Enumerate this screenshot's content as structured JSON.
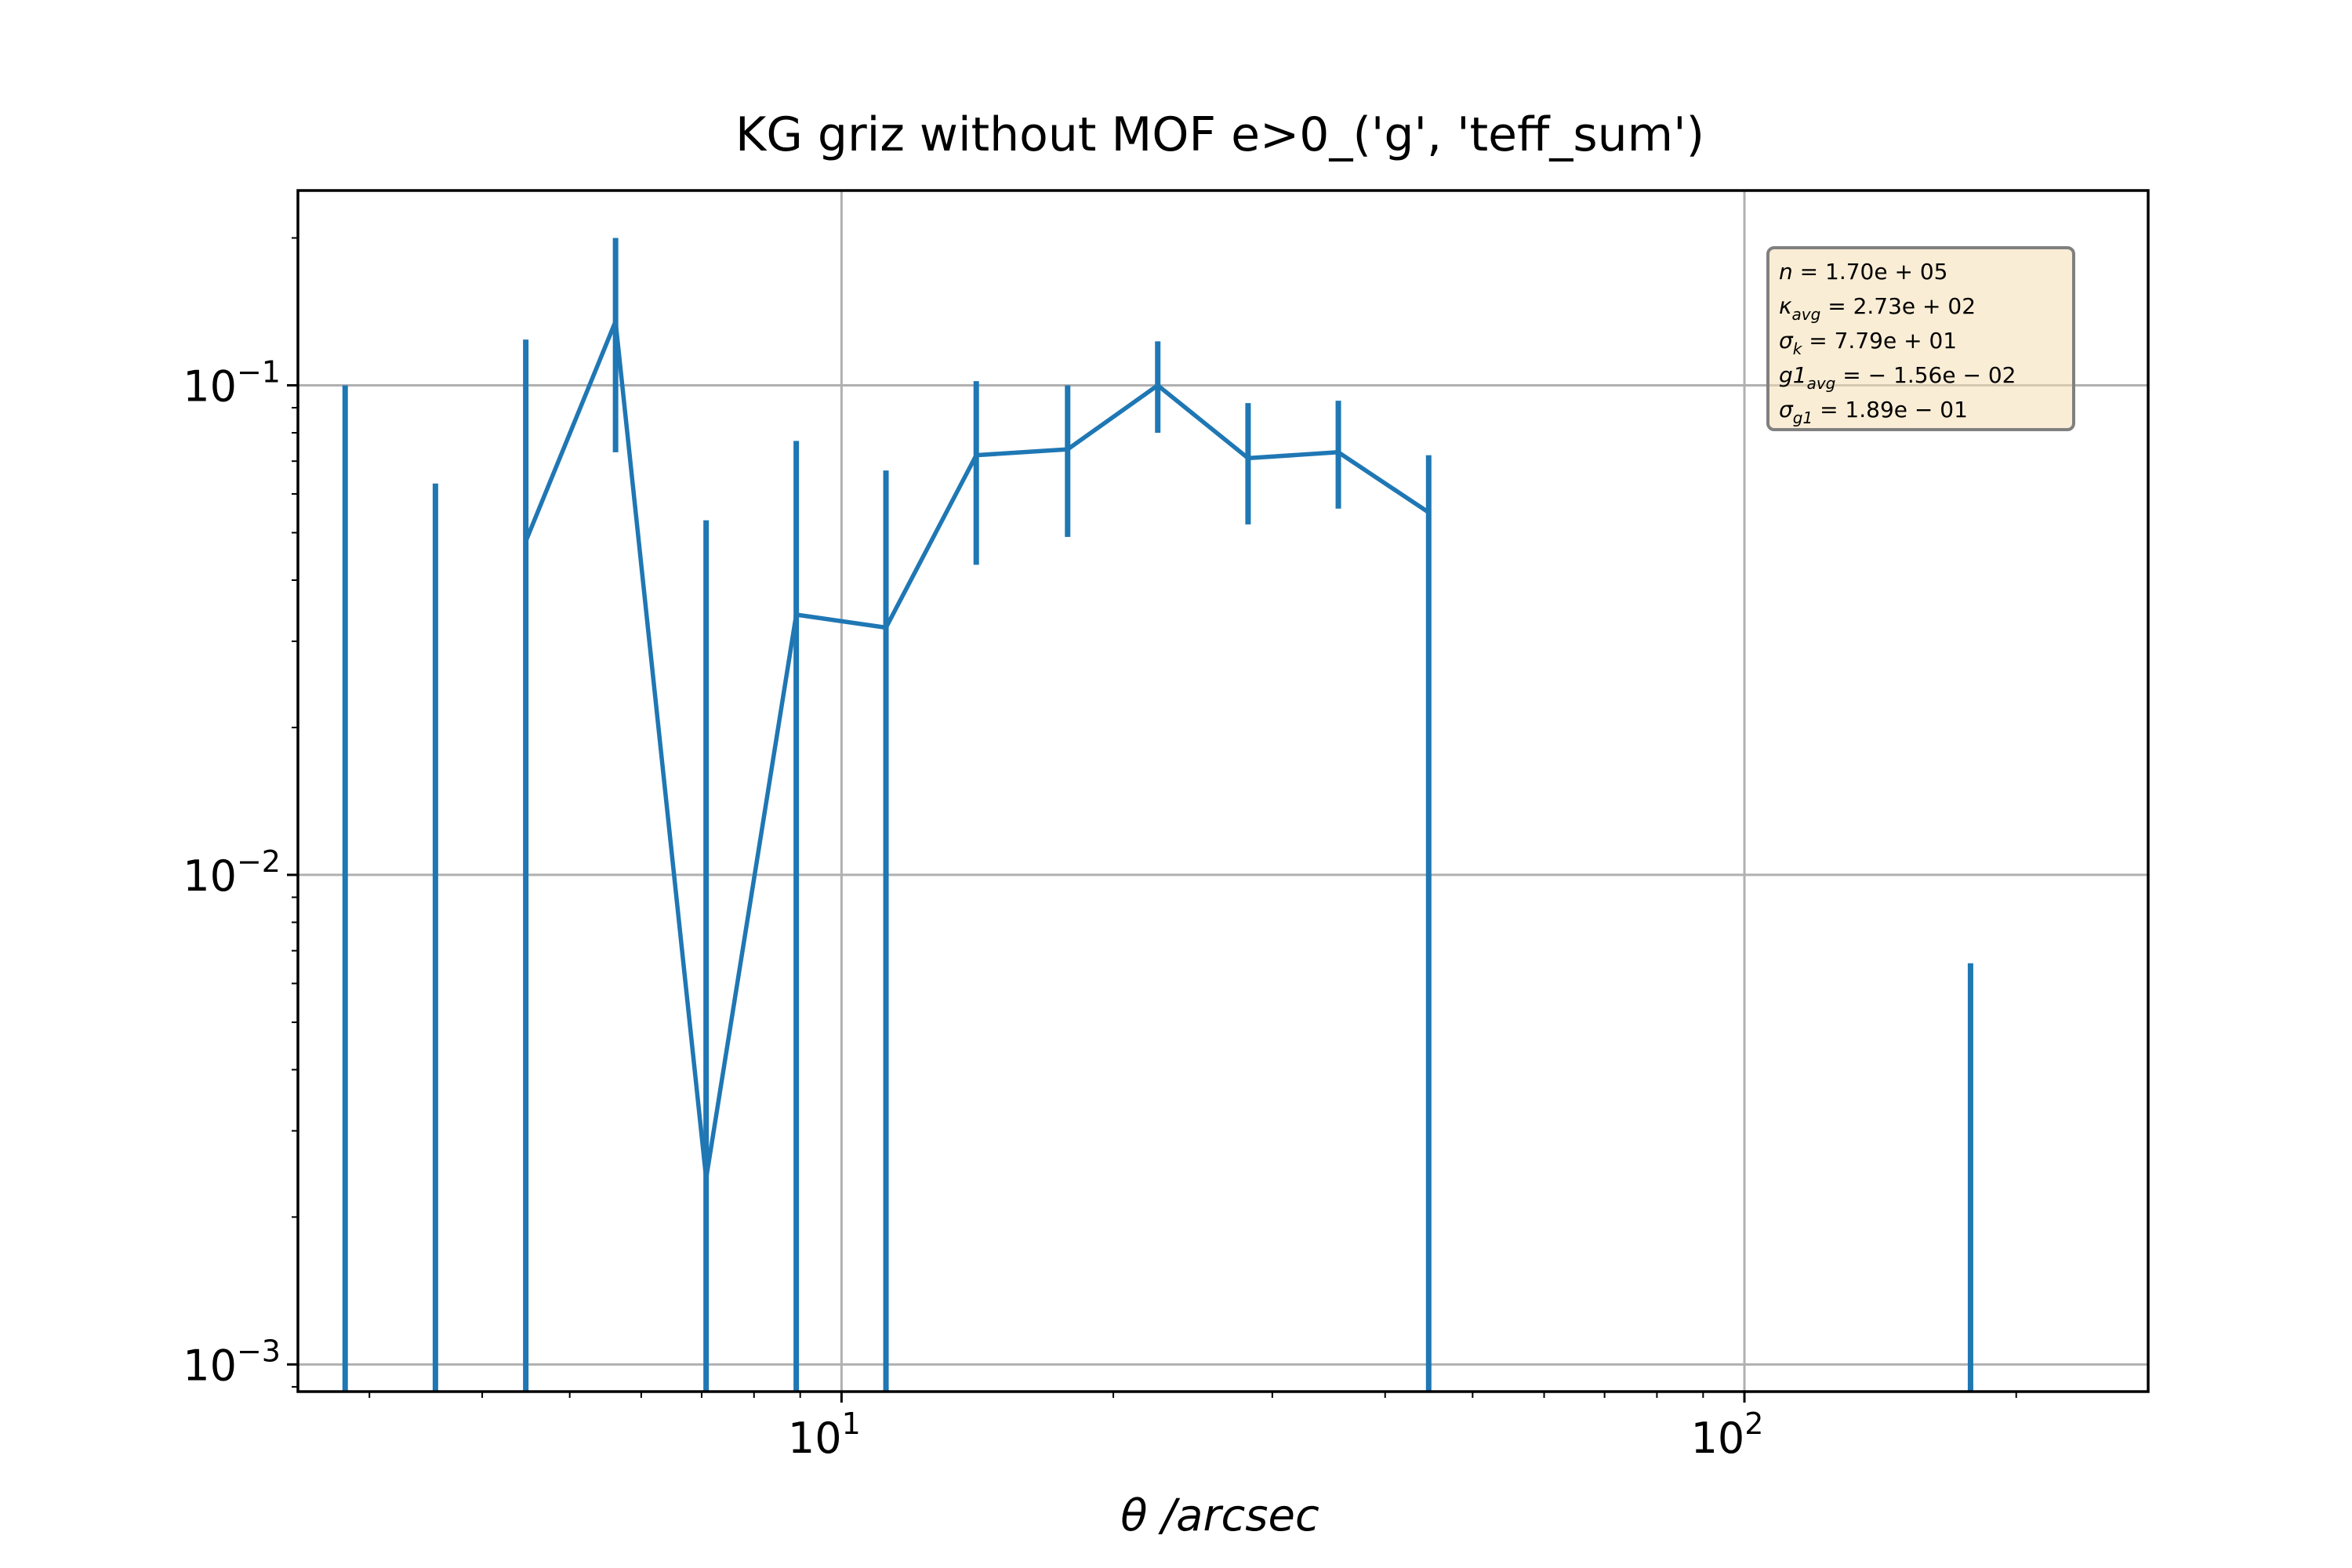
{
  "colors": {
    "series": "#1f77b4",
    "grid": "#b0b0b0",
    "stats_box_fill": "#f5deb3",
    "stats_box_edge": "#808080"
  },
  "chart_data": {
    "type": "line",
    "title": "KG griz without MOF e>0_('g', 'teff_sum')",
    "xlabel": "θ /arcsec",
    "ylabel": "",
    "xscale": "log",
    "yscale": "log",
    "xlim": [
      2.5,
      280
    ],
    "ylim": [
      0.00088,
      0.25
    ],
    "grid": true,
    "x_ticks": [
      {
        "value": 10,
        "base": "10",
        "exp": "1"
      },
      {
        "value": 100,
        "base": "10",
        "exp": "2"
      }
    ],
    "y_ticks": [
      {
        "value": 0.001,
        "base": "10",
        "exp": "−3"
      },
      {
        "value": 0.01,
        "base": "10",
        "exp": "−2"
      },
      {
        "value": 0.1,
        "base": "10",
        "exp": "−1"
      }
    ],
    "series": [
      {
        "x": [
          2.82,
          3.55,
          4.47,
          5.62,
          7.08,
          8.91,
          11.2,
          14.1,
          17.8,
          22.4,
          28.2,
          35.5,
          44.7,
          178
        ],
        "y": [
          null,
          null,
          0.048,
          0.135,
          0.0024,
          0.034,
          0.032,
          0.072,
          0.074,
          0.1,
          0.071,
          0.073,
          0.055,
          null
        ],
        "err_upper": [
          0.1,
          0.063,
          0.124,
          0.2,
          0.053,
          0.077,
          0.067,
          0.102,
          0.1,
          0.123,
          0.092,
          0.093,
          0.072,
          0.0066
        ],
        "err_lower": [
          0.00088,
          0.00088,
          0.00088,
          0.073,
          0.00088,
          0.00088,
          0.00088,
          0.043,
          0.049,
          0.08,
          0.052,
          0.056,
          0.00088,
          0.00088
        ]
      }
    ],
    "stats_box": {
      "position": "top-right",
      "lines": [
        {
          "sym": "n",
          "sub": "",
          "rest": " = 1.70e + 05"
        },
        {
          "sym": "κ",
          "sub": "avg",
          "rest": " = 2.73e + 02"
        },
        {
          "sym": "σ",
          "sub": "k",
          "rest": " = 7.79e + 01"
        },
        {
          "sym": "g1",
          "sub": "avg",
          "rest": " = − 1.56e − 02"
        },
        {
          "sym": "σ",
          "sub": "g1",
          "rest": " = 1.89e − 01"
        }
      ]
    }
  }
}
